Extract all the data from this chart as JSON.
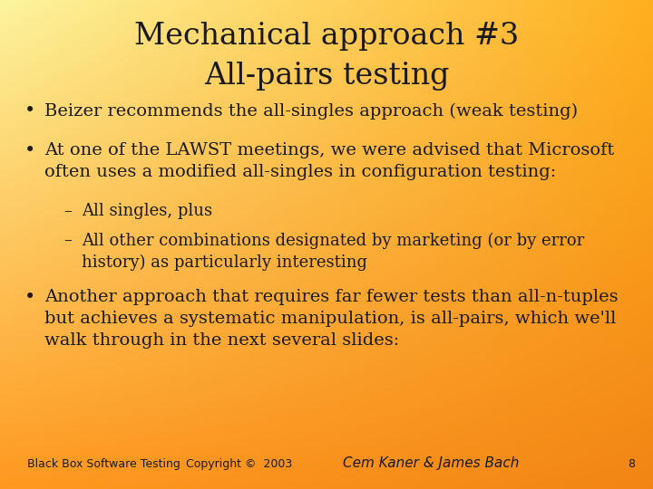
{
  "title_line1": "Mechanical approach #3",
  "title_line2": "All-pairs testing",
  "title_fontsize": 24,
  "title_color": "#1a1a1a",
  "bullet_color": "#1a1a1a",
  "bullet_fontsize": 14,
  "sub_bullet_fontsize": 13,
  "footer_fontsize": 9,
  "bullets": [
    "Beizer recommends the all-singles approach (weak testing)",
    "At one of the LAWST meetings, we were advised that Microsoft\noften uses a modified all-singles in configuration testing:"
  ],
  "sub_bullets": [
    "All singles, plus",
    "All other combinations designated by marketing (or by error\nhistory) as particularly interesting"
  ],
  "bullet3": "Another approach that requires far fewer tests than all-n-tuples\nbut achieves a systematic manipulation, is all-pairs, which we'll\nwalk through in the next several slides:",
  "footer_left": "Black Box Software Testing",
  "footer_mid": "Copyright ©  2003",
  "footer_right": "Cem Kaner & James Bach",
  "footer_page": "8",
  "bg_tl": [
    0.99,
    0.96,
    0.62
  ],
  "bg_tr": [
    1.0,
    0.69,
    0.12
  ],
  "bg_bl": [
    1.0,
    0.6,
    0.12
  ],
  "bg_br": [
    0.95,
    0.52,
    0.08
  ]
}
